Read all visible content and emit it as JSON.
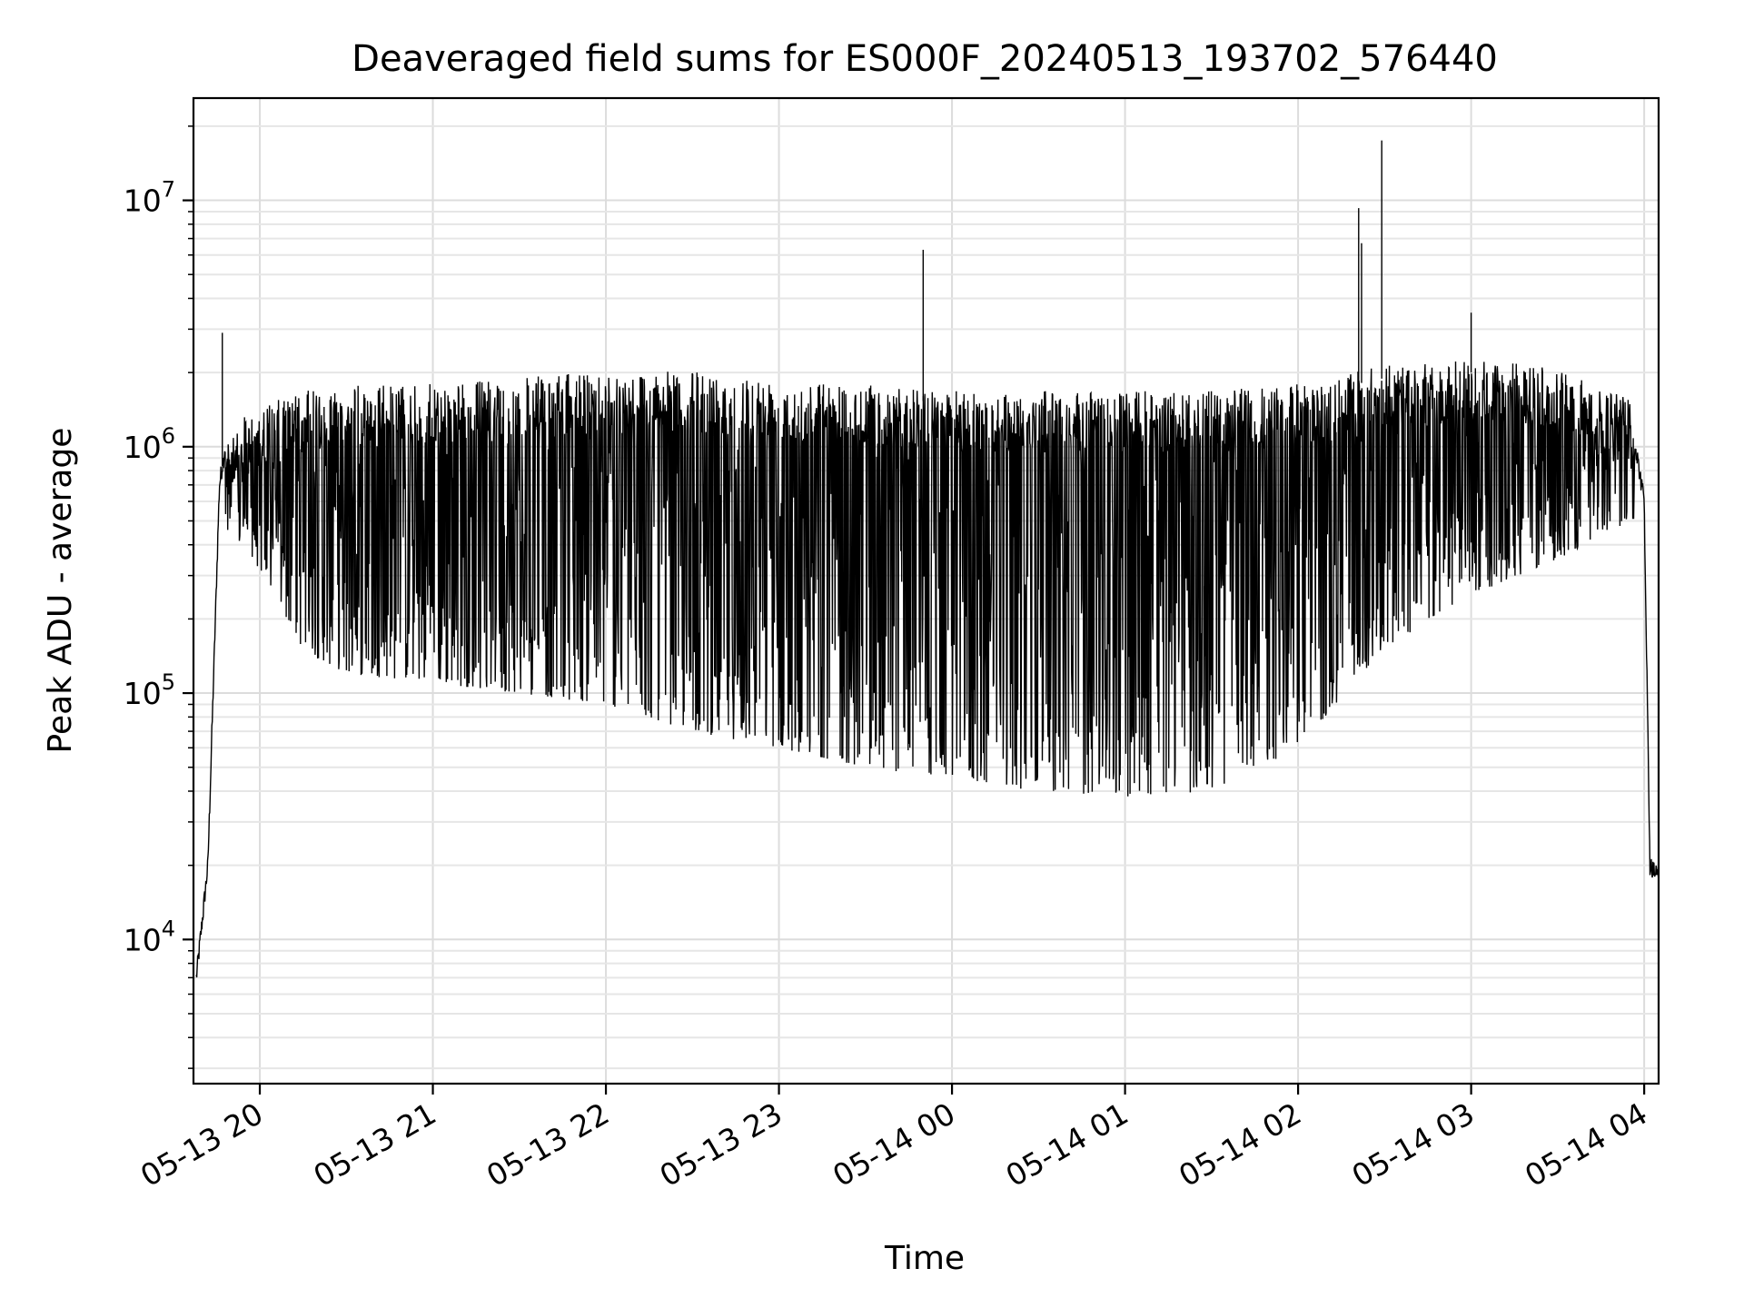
{
  "chart_data": {
    "type": "line",
    "title": "Deaveraged field sums for ES000F_20240513_193702_576440",
    "xlabel": "Time",
    "ylabel": "Peak ADU - average",
    "yscale": "log",
    "ylim": [
      2600,
      26000000
    ],
    "xlim": [
      "2024-05-13 19:37",
      "2024-05-14 04:05"
    ],
    "x_ticks": [
      "2024-05-13 20:00",
      "2024-05-13 21:00",
      "2024-05-13 22:00",
      "2024-05-13 23:00",
      "2024-05-14 00:00",
      "2024-05-14 01:00",
      "2024-05-14 02:00",
      "2024-05-14 03:00",
      "2024-05-14 04:00"
    ],
    "x_tick_labels": [
      "05-13 20",
      "05-13 21",
      "05-13 22",
      "05-13 23",
      "05-14 00",
      "05-14 01",
      "05-14 02",
      "05-14 03",
      "05-14 04"
    ],
    "y_ticks": [
      10000,
      100000,
      1000000,
      10000000
    ],
    "y_tick_labels": [
      {
        "base": "10",
        "exp": "4"
      },
      {
        "base": "10",
        "exp": "5"
      },
      {
        "base": "10",
        "exp": "6"
      },
      {
        "base": "10",
        "exp": "7"
      }
    ],
    "grid": true,
    "grid_minor_y": true,
    "line_color": "#000000",
    "series": [
      {
        "upper_envelope": {
          "x": [
            "2024-05-13 19:38",
            "2024-05-13 19:42",
            "2024-05-13 19:46",
            "2024-05-13 19:48",
            "2024-05-13 19:50",
            "2024-05-13 19:52",
            "2024-05-13 19:55",
            "2024-05-13 20:00",
            "2024-05-13 20:15",
            "2024-05-13 20:30",
            "2024-05-13 21:00",
            "2024-05-13 21:30",
            "2024-05-13 22:00",
            "2024-05-13 22:30",
            "2024-05-13 23:00",
            "2024-05-13 23:30",
            "2024-05-14 00:00",
            "2024-05-14 00:30",
            "2024-05-14 01:00",
            "2024-05-14 01:30",
            "2024-05-14 02:00",
            "2024-05-14 02:30",
            "2024-05-14 03:00",
            "2024-05-14 03:30",
            "2024-05-14 03:55",
            "2024-05-14 04:00",
            "2024-05-14 04:02",
            "2024-05-14 04:05"
          ],
          "y": [
            7000,
            20000,
            700000,
            1000000,
            1200000,
            1000000,
            1200000,
            1300000,
            1500000,
            1600000,
            1600000,
            1700000,
            1800000,
            1800000,
            1700000,
            1600000,
            1500000,
            1500000,
            1500000,
            1500000,
            1600000,
            1900000,
            2000000,
            1900000,
            1400000,
            600000,
            20000,
            18000
          ]
        },
        "lower_envelope": {
          "x": [
            "2024-05-13 19:55",
            "2024-05-13 20:15",
            "2024-05-13 20:30",
            "2024-05-13 21:00",
            "2024-05-13 21:30",
            "2024-05-13 22:00",
            "2024-05-13 22:30",
            "2024-05-13 23:00",
            "2024-05-13 23:30",
            "2024-05-14 00:00",
            "2024-05-14 00:30",
            "2024-05-14 01:00",
            "2024-05-14 01:30",
            "2024-05-14 02:00",
            "2024-05-14 02:30",
            "2024-05-14 03:00",
            "2024-05-14 03:30",
            "2024-05-14 03:55"
          ],
          "y": [
            400000,
            150000,
            120000,
            110000,
            100000,
            90000,
            70000,
            60000,
            50000,
            45000,
            40000,
            38000,
            40000,
            60000,
            150000,
            250000,
            350000,
            500000
          ]
        },
        "spikes": [
          {
            "x": "2024-05-13 19:47",
            "y": 2900000
          },
          {
            "x": "2024-05-13 23:50",
            "y": 6300000
          },
          {
            "x": "2024-05-14 02:21",
            "y": 9300000
          },
          {
            "x": "2024-05-14 02:22",
            "y": 6700000
          },
          {
            "x": "2024-05-14 02:29",
            "y": 17500000
          },
          {
            "x": "2024-05-14 03:00",
            "y": 3500000
          }
        ]
      }
    ]
  }
}
